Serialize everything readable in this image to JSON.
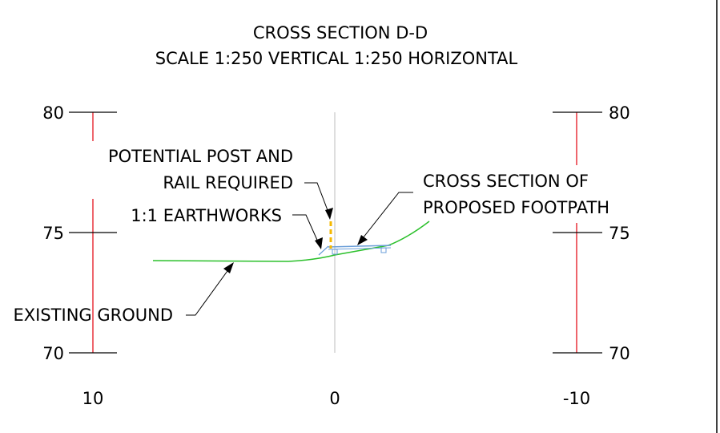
{
  "title": "CROSS SECTION D-D",
  "subtitle": "SCALE 1:250 VERTICAL 1:250 HORIZONTAL",
  "y_axis": {
    "left_ticks": [
      "80",
      "75",
      "70"
    ],
    "right_ticks": [
      "80",
      "75",
      "70"
    ]
  },
  "x_axis": {
    "ticks": [
      "10",
      "0",
      "-10"
    ]
  },
  "annotations": {
    "post_rail_line1": "POTENTIAL POST AND",
    "post_rail_line2": "RAIL REQUIRED",
    "earthworks": "1:1 EARTHWORKS",
    "footpath_line1": "CROSS SECTION OF",
    "footpath_line2": "PROPOSED FOOTPATH",
    "existing_ground": "EXISTING GROUND"
  },
  "colors": {
    "scale_bar": "#e8323c",
    "ground_line": "#2bc02b",
    "centerline": "#c8c8c8",
    "post_rail": "#f5b800",
    "footpath": "#6a9ed8",
    "leader": "#000000",
    "frame": "#000000"
  }
}
